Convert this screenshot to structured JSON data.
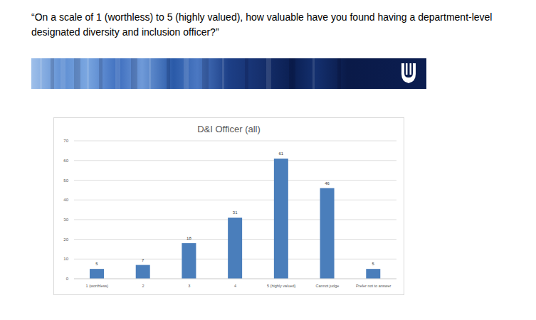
{
  "header": {
    "text": "“On a scale of 1 (worthless) to 5 (highly valued), how valuable have you found having a department-level designated diversity and inclusion officer?”"
  },
  "chart_data": {
    "type": "bar",
    "title": "D&I Officer (all)",
    "categories": [
      "1 (worthless)",
      "2",
      "3",
      "4",
      "5 (highly valued)",
      "Cannot judge",
      "Prefer not to answer"
    ],
    "values": [
      5,
      7,
      18,
      31,
      61,
      46,
      5
    ],
    "color": "#4a7ebb",
    "ylim": [
      0,
      70
    ],
    "yticks": [
      0,
      10,
      20,
      30,
      40,
      50,
      60,
      70
    ],
    "grid": true,
    "data_labels": true
  }
}
